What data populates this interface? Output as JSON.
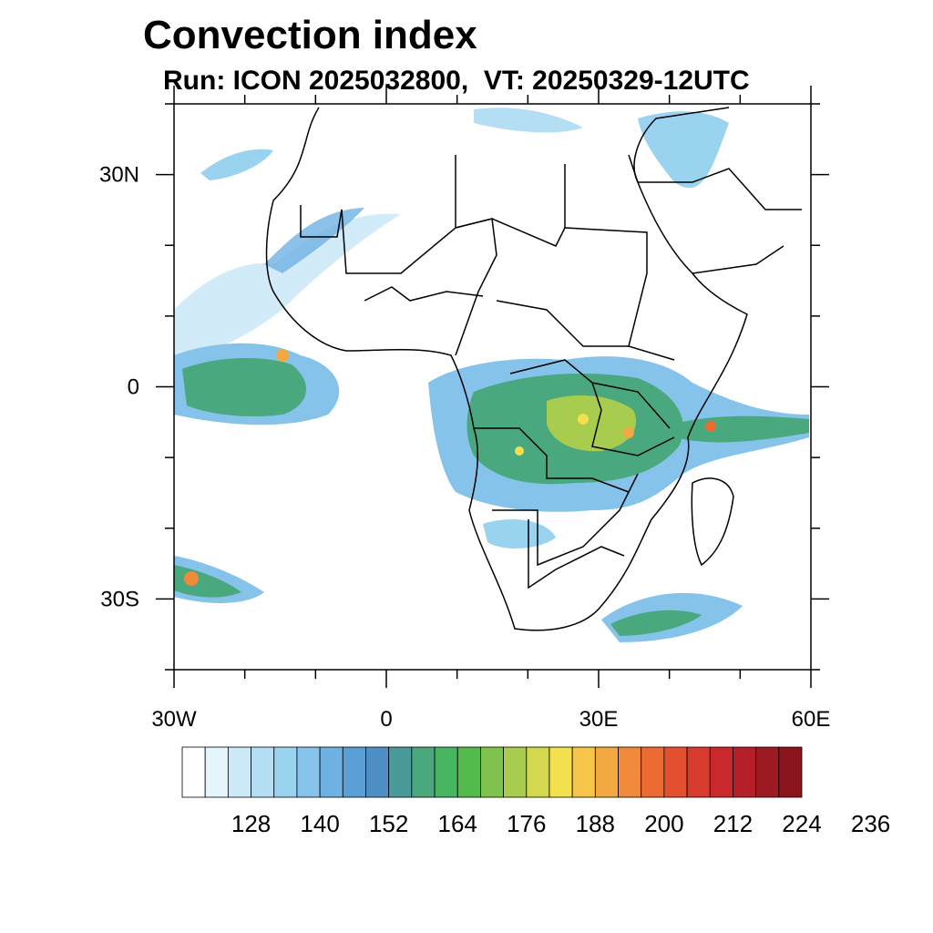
{
  "title": "Convection index",
  "subtitle": "Run: ICON 2025032800,  VT: 20250329-12UTC",
  "map": {
    "region": "Africa",
    "lon_range": [
      -30,
      60
    ],
    "lat_range": [
      -40,
      40
    ],
    "lon_ticks": [
      {
        "value": -30,
        "label": "30W"
      },
      {
        "value": 0,
        "label": "0"
      },
      {
        "value": 30,
        "label": "30E"
      },
      {
        "value": 60,
        "label": "60E"
      }
    ],
    "lat_ticks": [
      {
        "value": 30,
        "label": "30N"
      },
      {
        "value": 0,
        "label": "0"
      },
      {
        "value": -30,
        "label": "30S"
      }
    ]
  },
  "colorbar": {
    "labels": [
      "128",
      "140",
      "152",
      "164",
      "176",
      "188",
      "200",
      "212",
      "224",
      "236"
    ],
    "colors": [
      "#ffffff",
      "#e6f4fb",
      "#cce9f7",
      "#b3def3",
      "#99d3ef",
      "#85c3ea",
      "#6fb1e3",
      "#5a9ed6",
      "#4f8fc4",
      "#4a9a9a",
      "#4aa87f",
      "#48b560",
      "#53bb4c",
      "#7fc34e",
      "#a8cc4e",
      "#d3d84e",
      "#f2e04f",
      "#f7c54a",
      "#f4a842",
      "#f08a3a",
      "#ec6b33",
      "#e4502f",
      "#d93a2e",
      "#c9282c",
      "#b51f28",
      "#9e1a23",
      "#8a141e"
    ]
  }
}
